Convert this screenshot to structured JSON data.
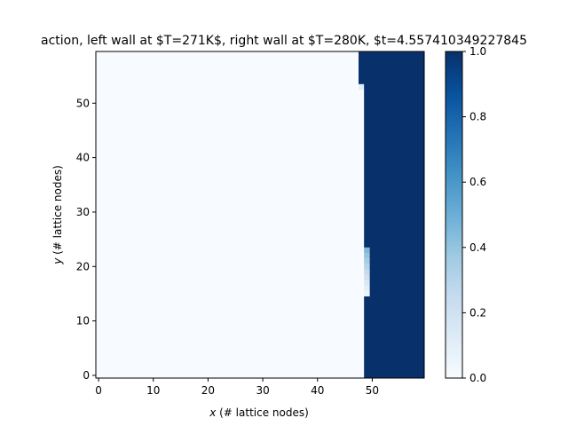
{
  "chart_data": {
    "type": "heatmap",
    "title": "action, left wall at $T=271K$, right wall at $T=280K, $t=4.557410349227845",
    "xlabel": "x (# lattice nodes)",
    "ylabel": "y (# lattice nodes)",
    "xlabel_var": "x",
    "xlabel_rest": " (# lattice nodes)",
    "ylabel_var": "y",
    "ylabel_rest": " (# lattice nodes)",
    "xlim": [
      -0.5,
      59.5
    ],
    "ylim": [
      -0.5,
      59.5
    ],
    "xticks": [
      0,
      10,
      20,
      30,
      40,
      50
    ],
    "yticks": [
      0,
      10,
      20,
      30,
      40,
      50
    ],
    "grid_size": [
      60,
      60
    ],
    "colormap": "Blues",
    "colorbar": {
      "vmin": 0.0,
      "vmax": 1.0,
      "ticks": [
        "0.0",
        "0.2",
        "0.4",
        "0.6",
        "0.8",
        "1.0"
      ]
    },
    "field_description_regions": [
      {
        "x_from": 50,
        "x_to": 59,
        "y_from": 0,
        "y_to": 59,
        "value": 1.0
      },
      {
        "x_from": 48,
        "x_to": 49,
        "y_from": 54,
        "y_to": 59,
        "value": 1.0
      },
      {
        "x_from": 48,
        "x_to": 48,
        "y_from": 53,
        "y_to": 53,
        "value": 0.1
      },
      {
        "x_from": 49,
        "x_to": 49,
        "y_from": 24,
        "y_to": 53,
        "value": 1.0
      },
      {
        "x_from": 49,
        "x_to": 49,
        "y_from": 23,
        "y_to": 23,
        "value": 0.45
      },
      {
        "x_from": 49,
        "x_to": 49,
        "y_from": 22,
        "y_to": 22,
        "value": 0.4
      },
      {
        "x_from": 49,
        "x_to": 49,
        "y_from": 21,
        "y_to": 21,
        "value": 0.35
      },
      {
        "x_from": 49,
        "x_to": 49,
        "y_from": 20,
        "y_to": 20,
        "value": 0.3
      },
      {
        "x_from": 49,
        "x_to": 49,
        "y_from": 19,
        "y_to": 19,
        "value": 0.25
      },
      {
        "x_from": 49,
        "x_to": 49,
        "y_from": 18,
        "y_to": 18,
        "value": 0.2
      },
      {
        "x_from": 49,
        "x_to": 49,
        "y_from": 17,
        "y_to": 17,
        "value": 0.15
      },
      {
        "x_from": 49,
        "x_to": 49,
        "y_from": 16,
        "y_to": 16,
        "value": 0.1
      },
      {
        "x_from": 49,
        "x_to": 49,
        "y_from": 15,
        "y_to": 15,
        "value": 0.05
      },
      {
        "x_from": 49,
        "x_to": 49,
        "y_from": 0,
        "y_to": 14,
        "value": 1.0
      }
    ],
    "background_value": 0.0
  }
}
